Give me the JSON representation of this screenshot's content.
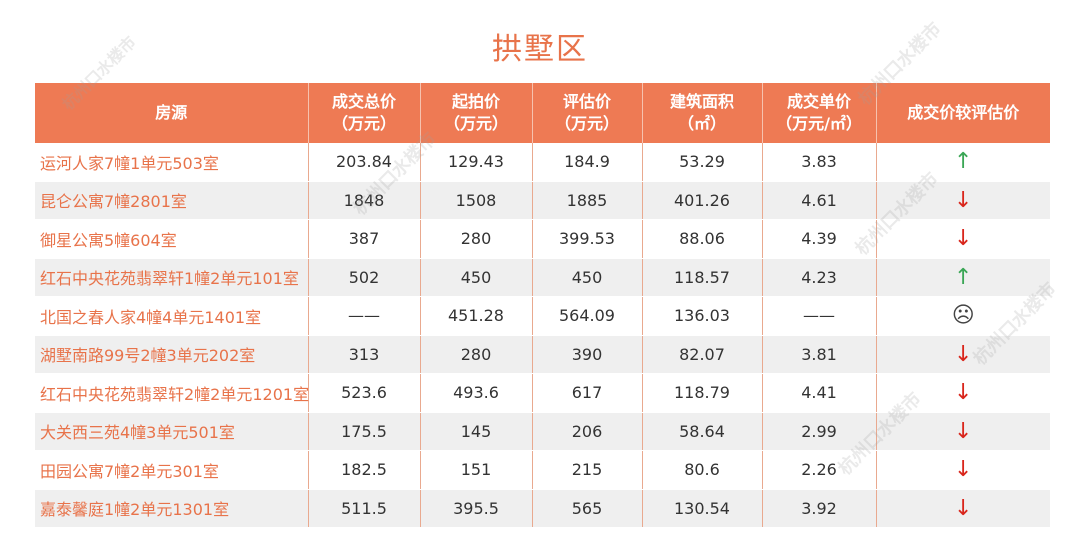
{
  "title": "拱墅区",
  "watermark": "杭州口水楼市",
  "colors": {
    "header_bg": "#ee7a54",
    "title": "#e8734a",
    "up": "#3aa655",
    "down": "#d9261c"
  },
  "headers": [
    {
      "line1": "房源",
      "line2": ""
    },
    {
      "line1": "成交总价",
      "line2": "（万元）"
    },
    {
      "line1": "起拍价",
      "line2": "（万元）"
    },
    {
      "line1": "评估价",
      "line2": "（万元）"
    },
    {
      "line1": "建筑面积",
      "line2": "（㎡）"
    },
    {
      "line1": "成交单价",
      "line2": "（万元/㎡）"
    },
    {
      "line1": "成交价较评估价",
      "line2": ""
    }
  ],
  "rows": [
    {
      "name": "运河人家7幢1单元503室",
      "total": "203.84",
      "start": "129.43",
      "appraisal": "184.9",
      "area": "53.29",
      "unit": "3.83",
      "trend": "↑",
      "trend_type": "up"
    },
    {
      "name": "昆仑公寓7幢2801室",
      "total": "1848",
      "start": "1508",
      "appraisal": "1885",
      "area": "401.26",
      "unit": "4.61",
      "trend": "↓",
      "trend_type": "down"
    },
    {
      "name": "御星公寓5幢604室",
      "total": "387",
      "start": "280",
      "appraisal": "399.53",
      "area": "88.06",
      "unit": "4.39",
      "trend": "↓",
      "trend_type": "down"
    },
    {
      "name": "红石中央花苑翡翠轩1幢2单元101室",
      "total": "502",
      "start": "450",
      "appraisal": "450",
      "area": "118.57",
      "unit": "4.23",
      "trend": "↑",
      "trend_type": "up"
    },
    {
      "name": "北国之春人家4幢4单元1401室",
      "total": "——",
      "start": "451.28",
      "appraisal": "564.09",
      "area": "136.03",
      "unit": "——",
      "trend": "☹",
      "trend_type": "neutral"
    },
    {
      "name": "湖墅南路99号2幢3单元202室",
      "total": "313",
      "start": "280",
      "appraisal": "390",
      "area": "82.07",
      "unit": "3.81",
      "trend": "↓",
      "trend_type": "down"
    },
    {
      "name": "红石中央花苑翡翠轩2幢2单元1201室",
      "total": "523.6",
      "start": "493.6",
      "appraisal": "617",
      "area": "118.79",
      "unit": "4.41",
      "trend": "↓",
      "trend_type": "down"
    },
    {
      "name": "大关西三苑4幢3单元501室",
      "total": "175.5",
      "start": "145",
      "appraisal": "206",
      "area": "58.64",
      "unit": "2.99",
      "trend": "↓",
      "trend_type": "down"
    },
    {
      "name": "田园公寓7幢2单元301室",
      "total": "182.5",
      "start": "151",
      "appraisal": "215",
      "area": "80.6",
      "unit": "2.26",
      "trend": "↓",
      "trend_type": "down"
    },
    {
      "name": "嘉泰馨庭1幢2单元1301室",
      "total": "511.5",
      "start": "395.5",
      "appraisal": "565",
      "area": "130.54",
      "unit": "3.92",
      "trend": "↓",
      "trend_type": "down"
    }
  ]
}
